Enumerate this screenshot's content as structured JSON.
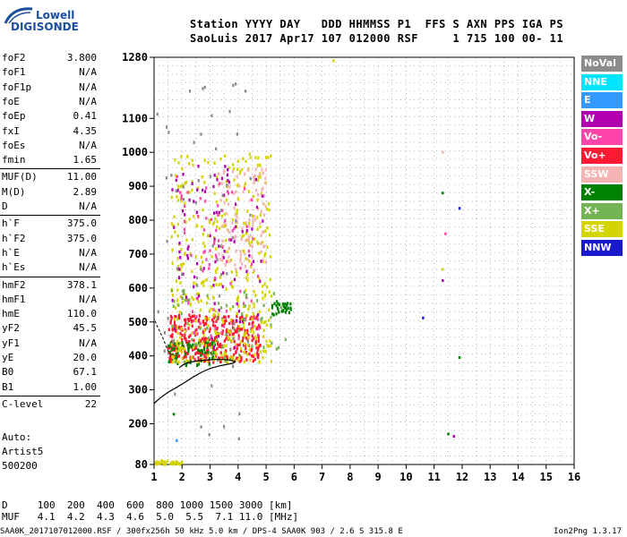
{
  "logo": {
    "line1": "Lowell",
    "line2": "DIGISONDE"
  },
  "header": {
    "line1": "Station YYYY DAY   DDD HHMMSS P1  FFS S AXN PPS IGA PS",
    "line2": "SaoLuis 2017 Apr17 107 012000 RSF     1 715 100 00- 11"
  },
  "params": [
    {
      "name": "foF2",
      "value": "3.800"
    },
    {
      "name": "foF1",
      "value": "N/A"
    },
    {
      "name": "foF1p",
      "value": "N/A"
    },
    {
      "name": "foE",
      "value": "N/A"
    },
    {
      "name": "foEp",
      "value": "0.41"
    },
    {
      "name": "fxI",
      "value": "4.35"
    },
    {
      "name": "foEs",
      "value": "N/A"
    },
    {
      "name": "fmin",
      "value": "1.65"
    },
    {
      "name": "MUF(D)",
      "value": "11.00"
    },
    {
      "name": "M(D)",
      "value": "2.89"
    },
    {
      "name": "D",
      "value": "N/A"
    },
    {
      "name": "h`F",
      "value": "375.0"
    },
    {
      "name": "h`F2",
      "value": "375.0"
    },
    {
      "name": "h`E",
      "value": "N/A"
    },
    {
      "name": "h`Es",
      "value": "N/A"
    },
    {
      "name": "hmF2",
      "value": "378.1"
    },
    {
      "name": "hmF1",
      "value": "N/A"
    },
    {
      "name": "hmE",
      "value": "110.0"
    },
    {
      "name": "yF2",
      "value": "45.5"
    },
    {
      "name": "yF1",
      "value": "N/A"
    },
    {
      "name": "yE",
      "value": "20.0"
    },
    {
      "name": "B0",
      "value": "67.1"
    },
    {
      "name": "B1",
      "value": "1.00"
    },
    {
      "name": "C-level",
      "value": "22"
    }
  ],
  "autoscaling": {
    "label": "Auto:",
    "artist": "Artist5",
    "code": "500200"
  },
  "muf_table": {
    "d_row": "D     100  200  400  600  800 1000 1500 3000 [km]",
    "muf_row": "MUF   4.1  4.2  4.3  4.6  5.0  5.5  7.1 11.0 [MHz]"
  },
  "footer": {
    "file_info": "SAA0K_2017107012000.RSF / 300fx256h 50 kHz 5.0 km / DPS-4 SAA0K 903 / 2.6 S 315.8 E",
    "version": "Ion2Png 1.3.17"
  },
  "legend": [
    {
      "label": "NoVal",
      "color": "#8c8c8c"
    },
    {
      "label": "NNE",
      "color": "#00e5ff"
    },
    {
      "label": "E",
      "color": "#3399ff"
    },
    {
      "label": "W",
      "color": "#b000b0"
    },
    {
      "label": "Vo-",
      "color": "#ff44aa"
    },
    {
      "label": "Vo+",
      "color": "#ff1a33"
    },
    {
      "label": "SSW",
      "color": "#f4b4b4"
    },
    {
      "label": "X-",
      "color": "#008000"
    },
    {
      "label": "X+",
      "color": "#74b454"
    },
    {
      "label": "SSE",
      "color": "#d4d400"
    },
    {
      "label": "NNW",
      "color": "#1a1acc"
    }
  ],
  "chart_data": {
    "type": "scatter",
    "xlim": [
      1,
      16
    ],
    "ylim": [
      80,
      1280
    ],
    "x_ticks": [
      1,
      2,
      3,
      4,
      5,
      6,
      7,
      8,
      9,
      10,
      11,
      12,
      13,
      14,
      15,
      16
    ],
    "y_ticks": [
      80,
      200,
      300,
      400,
      500,
      600,
      700,
      800,
      900,
      1000,
      1100,
      1280
    ],
    "grid": true,
    "trace_clusters": [
      {
        "name": "Vo+",
        "x_range": [
          1.5,
          4.8
        ],
        "y_range": [
          380,
          520
        ],
        "count": 360
      },
      {
        "name": "X-",
        "x_range": [
          1.5,
          3.2
        ],
        "y_range": [
          370,
          440
        ],
        "count": 70
      },
      {
        "name": "SSE",
        "x_range": [
          1.6,
          5.2
        ],
        "y_range": [
          380,
          1000
        ],
        "count": 420
      },
      {
        "name": "SSW",
        "x_range": [
          3.3,
          5.0
        ],
        "y_range": [
          650,
          950
        ],
        "count": 110
      },
      {
        "name": "W",
        "x_range": [
          1.6,
          5.0
        ],
        "y_range": [
          420,
          960
        ],
        "count": 90
      },
      {
        "name": "Vo-",
        "x_range": [
          1.8,
          4.8
        ],
        "y_range": [
          450,
          930
        ],
        "count": 80
      },
      {
        "name": "X+",
        "x_range": [
          1.6,
          5.8
        ],
        "y_range": [
          380,
          600
        ],
        "count": 60
      },
      {
        "name": "X-",
        "x_range": [
          5.2,
          5.9
        ],
        "y_range": [
          520,
          560
        ],
        "count": 30
      },
      {
        "name": "SSE",
        "x_range": [
          1.0,
          2.0
        ],
        "y_range": [
          80,
          90
        ],
        "count": 40
      },
      {
        "name": "NoVal",
        "x_range": [
          1.0,
          4.5
        ],
        "y_range": [
          140,
          1280
        ],
        "count": 60
      }
    ],
    "isolated_points": [
      {
        "x": 11.3,
        "y": 1000,
        "series": "SSW"
      },
      {
        "x": 11.3,
        "y": 880,
        "series": "X-"
      },
      {
        "x": 11.9,
        "y": 835,
        "series": "NNW"
      },
      {
        "x": 11.4,
        "y": 760,
        "series": "Vo-"
      },
      {
        "x": 11.3,
        "y": 655,
        "series": "SSE"
      },
      {
        "x": 11.3,
        "y": 622,
        "series": "W"
      },
      {
        "x": 10.6,
        "y": 512,
        "series": "NNW"
      },
      {
        "x": 11.9,
        "y": 395,
        "series": "X-"
      },
      {
        "x": 11.5,
        "y": 170,
        "series": "X-"
      },
      {
        "x": 11.7,
        "y": 163,
        "series": "W"
      },
      {
        "x": 7.4,
        "y": 1270,
        "series": "SSE"
      },
      {
        "x": 1.7,
        "y": 228,
        "series": "X-"
      },
      {
        "x": 1.8,
        "y": 150,
        "series": "E"
      }
    ],
    "profile_line": [
      [
        1.0,
        260
      ],
      [
        1.2,
        275
      ],
      [
        1.5,
        293
      ],
      [
        1.8,
        307
      ],
      [
        2.1,
        322
      ],
      [
        2.4,
        338
      ],
      [
        2.7,
        352
      ],
      [
        3.0,
        363
      ],
      [
        3.3,
        370
      ],
      [
        3.6,
        375
      ],
      [
        3.8,
        378
      ],
      [
        3.9,
        383
      ],
      [
        3.7,
        388
      ],
      [
        3.3,
        390
      ],
      [
        2.9,
        388
      ],
      [
        2.5,
        385
      ],
      [
        2.2,
        380
      ],
      [
        2.0,
        372
      ],
      [
        1.9,
        365
      ]
    ],
    "eregion_line": [
      [
        1.6,
        400
      ],
      [
        1.5,
        415
      ],
      [
        1.3,
        455
      ],
      [
        1.1,
        490
      ],
      [
        1.0,
        510
      ]
    ]
  }
}
